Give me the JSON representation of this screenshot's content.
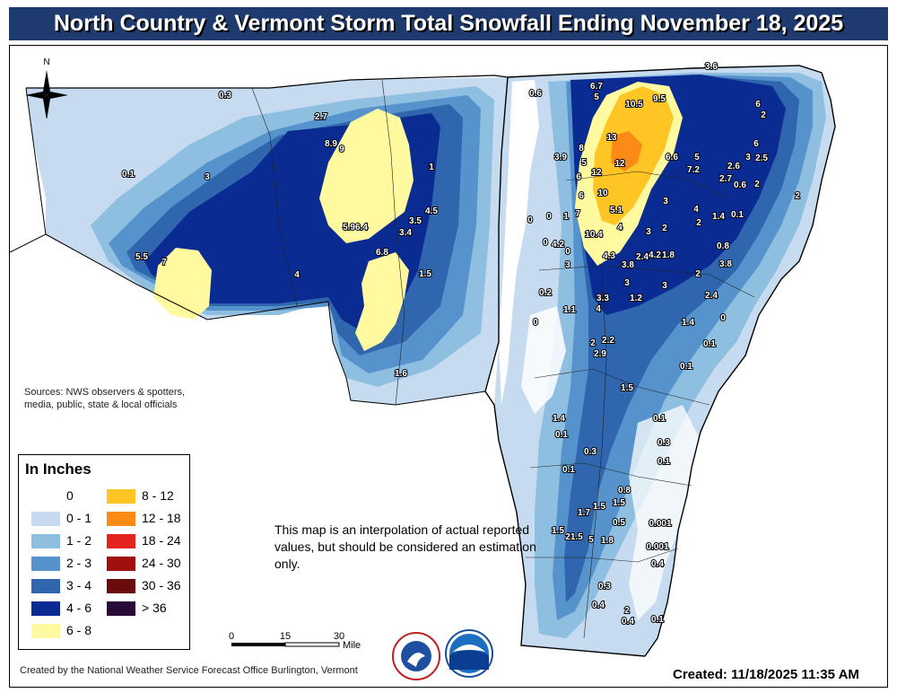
{
  "title": "North Country & Vermont Storm Total Snowfall Ending November 18, 2025",
  "sources": [
    "Sources: NWS observers & spotters,",
    "media, public, state & local officials"
  ],
  "legend": {
    "title": "In Inches",
    "items": [
      {
        "label": "0",
        "color": "#ffffff"
      },
      {
        "label": "0 - 1",
        "color": "#c6dbef"
      },
      {
        "label": "1 - 2",
        "color": "#8fbfe0"
      },
      {
        "label": "2 - 3",
        "color": "#5693cc"
      },
      {
        "label": "3 - 4",
        "color": "#2f66ad"
      },
      {
        "label": "4 - 6",
        "color": "#0a2c92"
      },
      {
        "label": "6 - 8",
        "color": "#fffaa0"
      },
      {
        "label": "8 - 12",
        "color": "#ffc524"
      },
      {
        "label": "12 - 18",
        "color": "#fb8a16"
      },
      {
        "label": "18 - 24",
        "color": "#e3231e"
      },
      {
        "label": "24 - 30",
        "color": "#a00e0e"
      },
      {
        "label": "30 - 36",
        "color": "#6a0c0c"
      },
      {
        "label": "> 36",
        "color": "#2a0a38"
      }
    ]
  },
  "note": "This map is an interpolation of actual reported values, but should be considered an estimation only.",
  "scale": {
    "ticks": [
      "0",
      "15",
      "30"
    ],
    "unit": "Miles"
  },
  "footer": {
    "credit": "Created by the National Weather Service Forecast Office Burlington, Vermont",
    "created": "Created: 11/18/2025 11:35 AM"
  },
  "compass_label": "N",
  "logos": {
    "nws": "NATIONAL WEATHER SERVICE",
    "noaa": "NOAA"
  },
  "observations": [
    {
      "label": "0.3"
    },
    {
      "label": "2.7"
    },
    {
      "label": "8.9"
    },
    {
      "label": "9"
    },
    {
      "label": "0.1"
    },
    {
      "label": "3"
    },
    {
      "label": "1"
    },
    {
      "label": "4.5"
    },
    {
      "label": "3.5"
    },
    {
      "label": "5.96.4"
    },
    {
      "label": "3.4"
    },
    {
      "label": "6.8"
    },
    {
      "label": "5.5"
    },
    {
      "label": "7"
    },
    {
      "label": "4"
    },
    {
      "label": "1.5"
    },
    {
      "label": "1.6"
    },
    {
      "label": "0.6"
    },
    {
      "label": "6.7"
    },
    {
      "label": "5"
    },
    {
      "label": "10.5"
    },
    {
      "label": "9.5"
    },
    {
      "label": "3.6"
    },
    {
      "label": "6"
    },
    {
      "label": "2"
    },
    {
      "label": "13"
    },
    {
      "label": "8"
    },
    {
      "label": "3.9"
    },
    {
      "label": "5"
    },
    {
      "label": "6"
    },
    {
      "label": "12"
    },
    {
      "label": "12"
    },
    {
      "label": "6.6"
    },
    {
      "label": "5"
    },
    {
      "label": "7.2"
    },
    {
      "label": "2.6"
    },
    {
      "label": "3"
    },
    {
      "label": "2.5"
    },
    {
      "label": "6"
    },
    {
      "label": "2.7"
    },
    {
      "label": "0.6"
    },
    {
      "label": "2"
    },
    {
      "label": "10"
    },
    {
      "label": "6"
    },
    {
      "label": "2"
    },
    {
      "label": "7"
    },
    {
      "label": "5.1"
    },
    {
      "label": "3"
    },
    {
      "label": "4"
    },
    {
      "label": "1.4"
    },
    {
      "label": "0.1"
    },
    {
      "label": "0"
    },
    {
      "label": "0"
    },
    {
      "label": "1"
    },
    {
      "label": "4"
    },
    {
      "label": "3"
    },
    {
      "label": "2"
    },
    {
      "label": "2"
    },
    {
      "label": "10.4"
    },
    {
      "label": "0"
    },
    {
      "label": "4.2"
    },
    {
      "label": "0"
    },
    {
      "label": "0.8"
    },
    {
      "label": "4.3"
    },
    {
      "label": "3.8"
    },
    {
      "label": "2.4"
    },
    {
      "label": "4.2"
    },
    {
      "label": "1.8"
    },
    {
      "label": "3.8"
    },
    {
      "label": "3"
    },
    {
      "label": "3"
    },
    {
      "label": "2"
    },
    {
      "label": "0.2"
    },
    {
      "label": "3.3"
    },
    {
      "label": "1.2"
    },
    {
      "label": "3"
    },
    {
      "label": "2.4"
    },
    {
      "label": "1.1"
    },
    {
      "label": "4"
    },
    {
      "label": "0"
    },
    {
      "label": "0"
    },
    {
      "label": "1.4"
    },
    {
      "label": "2"
    },
    {
      "label": "2.2"
    },
    {
      "label": "0.1"
    },
    {
      "label": "2.9"
    },
    {
      "label": "0.1"
    },
    {
      "label": "1.5"
    },
    {
      "label": "1.4"
    },
    {
      "label": "0.1"
    },
    {
      "label": "0.1"
    },
    {
      "label": "0.3"
    },
    {
      "label": "0.3"
    },
    {
      "label": "0.1"
    },
    {
      "label": "0.1"
    },
    {
      "label": "0.8"
    },
    {
      "label": "1.5"
    },
    {
      "label": "1.5"
    },
    {
      "label": "1.7"
    },
    {
      "label": "0.5"
    },
    {
      "label": "0.001"
    },
    {
      "label": "1.5"
    },
    {
      "label": "21.5"
    },
    {
      "label": "5"
    },
    {
      "label": "1.8"
    },
    {
      "label": "0.001"
    },
    {
      "label": "0.4"
    },
    {
      "label": "0.3"
    },
    {
      "label": "0.4"
    },
    {
      "label": "2"
    },
    {
      "label": "0.4"
    },
    {
      "label": "0.1"
    }
  ]
}
